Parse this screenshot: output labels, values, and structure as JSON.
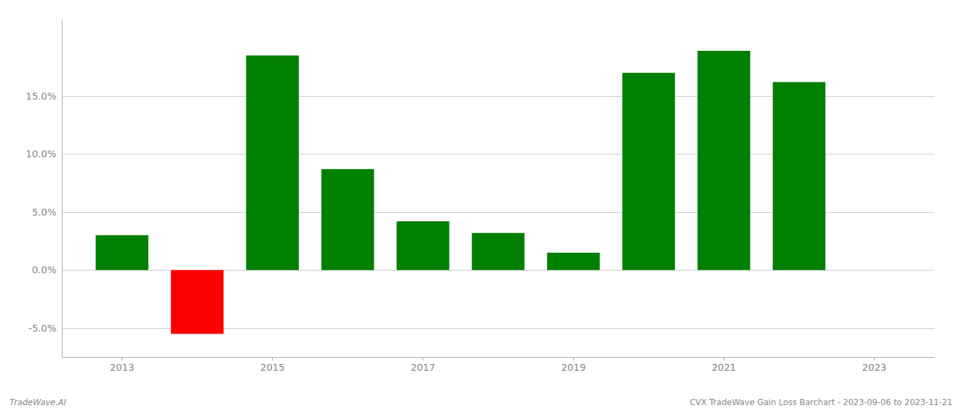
{
  "chart_data": {
    "type": "bar",
    "x": [
      2013,
      2014,
      2015,
      2016,
      2017,
      2018,
      2019,
      2020,
      2021,
      2022
    ],
    "values": [
      0.03,
      -0.055,
      0.185,
      0.087,
      0.042,
      0.032,
      0.015,
      0.17,
      0.189,
      0.162
    ],
    "colors": [
      "#008000",
      "#ff0000",
      "#008000",
      "#008000",
      "#008000",
      "#008000",
      "#008000",
      "#008000",
      "#008000",
      "#008000"
    ],
    "xlim": [
      2012.2,
      2023.8
    ],
    "xticks": [
      2013,
      2015,
      2017,
      2019,
      2021,
      2023
    ],
    "ylim": [
      -0.075,
      0.215
    ],
    "yticks": [
      {
        "value": -0.05,
        "label": "-5.0%"
      },
      {
        "value": 0.0,
        "label": "0.0%"
      },
      {
        "value": 0.05,
        "label": "5.0%"
      },
      {
        "value": 0.1,
        "label": "10.0%"
      },
      {
        "value": 0.15,
        "label": "15.0%"
      }
    ],
    "grid": true,
    "annotations": [
      "TradeWave.AI",
      "CVX TradeWave Gain Loss Barchart - 2023-09-06 to 2023-11-21"
    ]
  }
}
